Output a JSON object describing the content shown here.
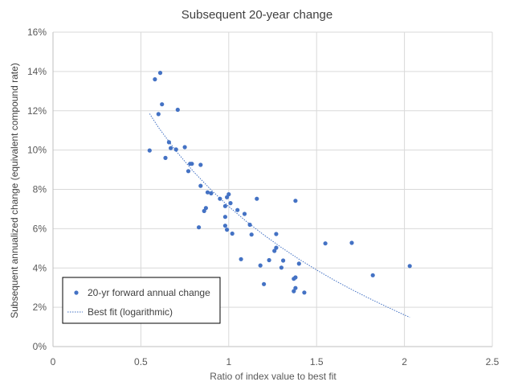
{
  "chart_data": {
    "type": "scatter",
    "title": "Subsequent 20-year change",
    "xlabel": "Ratio of index value to best fit",
    "ylabel": "Subsequent annualized change (equivalent compound rate)",
    "xlim": [
      0,
      2.5
    ],
    "ylim": [
      0,
      0.16
    ],
    "x_ticks": [
      "0",
      "0.5",
      "1",
      "1.5",
      "2",
      "2.5"
    ],
    "y_ticks": [
      "0%",
      "2%",
      "4%",
      "6%",
      "8%",
      "10%",
      "12%",
      "14%",
      "16%"
    ],
    "grid": "vertical and horizontal major gridlines",
    "legend_position": "bottom-left inside plot",
    "series": [
      {
        "name": "20-yr forward annual change",
        "kind": "markers",
        "color": "#4472C4",
        "points": [
          [
            0.55,
            0.0998
          ],
          [
            0.58,
            0.136
          ],
          [
            0.6,
            0.1183
          ],
          [
            0.61,
            0.1393
          ],
          [
            0.62,
            0.1233
          ],
          [
            0.64,
            0.096
          ],
          [
            0.66,
            0.104
          ],
          [
            0.67,
            0.101
          ],
          [
            0.7,
            0.1003
          ],
          [
            0.71,
            0.1205
          ],
          [
            0.75,
            0.1015
          ],
          [
            0.77,
            0.0893
          ],
          [
            0.78,
            0.093
          ],
          [
            0.79,
            0.093
          ],
          [
            0.83,
            0.0607
          ],
          [
            0.84,
            0.0925
          ],
          [
            0.84,
            0.0818
          ],
          [
            0.86,
            0.069
          ],
          [
            0.87,
            0.0705
          ],
          [
            0.88,
            0.0785
          ],
          [
            0.9,
            0.078
          ],
          [
            0.95,
            0.0752
          ],
          [
            0.98,
            0.066
          ],
          [
            0.98,
            0.0615
          ],
          [
            0.99,
            0.0595
          ],
          [
            0.98,
            0.0715
          ],
          [
            0.99,
            0.076
          ],
          [
            1.0,
            0.0775
          ],
          [
            1.01,
            0.073
          ],
          [
            1.02,
            0.0575
          ],
          [
            1.05,
            0.0695
          ],
          [
            1.07,
            0.0445
          ],
          [
            1.09,
            0.0675
          ],
          [
            1.12,
            0.062
          ],
          [
            1.13,
            0.057
          ],
          [
            1.16,
            0.0752
          ],
          [
            1.18,
            0.0413
          ],
          [
            1.2,
            0.0318
          ],
          [
            1.23,
            0.044
          ],
          [
            1.26,
            0.0487
          ],
          [
            1.27,
            0.0573
          ],
          [
            1.27,
            0.0503
          ],
          [
            1.3,
            0.0402
          ],
          [
            1.31,
            0.0438
          ],
          [
            1.37,
            0.0282
          ],
          [
            1.37,
            0.0345
          ],
          [
            1.38,
            0.0352
          ],
          [
            1.38,
            0.0298
          ],
          [
            1.38,
            0.0742
          ],
          [
            1.4,
            0.0422
          ],
          [
            1.43,
            0.0275
          ],
          [
            1.55,
            0.0525
          ],
          [
            1.7,
            0.0528
          ],
          [
            1.82,
            0.0363
          ],
          [
            2.03,
            0.041
          ]
        ]
      },
      {
        "name": "Best fit (logarithmic)",
        "kind": "dotted-line",
        "color": "#4472C4",
        "points": [
          [
            0.55,
            0.1185
          ],
          [
            0.6,
            0.1115
          ],
          [
            0.7,
            0.0995
          ],
          [
            0.8,
            0.089
          ],
          [
            0.9,
            0.0797
          ],
          [
            1.0,
            0.0713
          ],
          [
            1.1,
            0.0637
          ],
          [
            1.2,
            0.0568
          ],
          [
            1.3,
            0.0504
          ],
          [
            1.4,
            0.0445
          ],
          [
            1.5,
            0.039
          ],
          [
            1.6,
            0.0338
          ],
          [
            1.7,
            0.029
          ],
          [
            1.8,
            0.0245
          ],
          [
            1.9,
            0.0202
          ],
          [
            2.0,
            0.0161
          ],
          [
            2.03,
            0.0149
          ]
        ]
      }
    ]
  }
}
